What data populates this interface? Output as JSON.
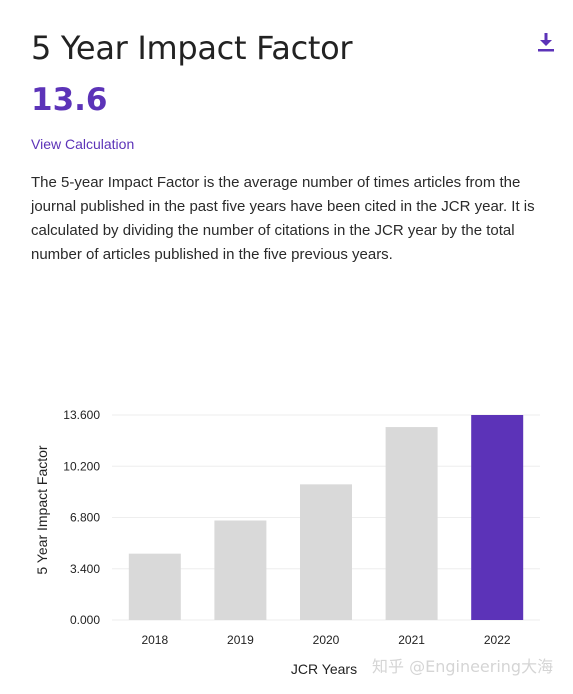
{
  "header": {
    "title": "5 Year Impact Factor",
    "value": "13.6",
    "view_calculation": "View Calculation",
    "download_icon": "download-icon"
  },
  "description": "The 5-year Impact Factor is the average number of times articles from the journal published in the past five years have been cited in the JCR year. It is calculated by dividing the number of citations in the JCR year by the total number of articles published in the five previous years.",
  "colors": {
    "accent": "#5c33b8",
    "bar_default": "#d9d9d9",
    "bar_highlight": "#5c33b8",
    "grid": "#eeeeee"
  },
  "chart_data": {
    "type": "bar",
    "categories": [
      "2018",
      "2019",
      "2020",
      "2021",
      "2022"
    ],
    "values": [
      4.4,
      6.6,
      9.0,
      12.8,
      13.6
    ],
    "highlight_index": 4,
    "xlabel": "JCR Years",
    "ylabel": "5 Year Impact Factor",
    "ylim": [
      0,
      13.6
    ],
    "yticks": [
      "0.000",
      "3.400",
      "6.800",
      "10.200",
      "13.600"
    ],
    "grid": true
  },
  "watermark": "知乎 @Engineering大海"
}
